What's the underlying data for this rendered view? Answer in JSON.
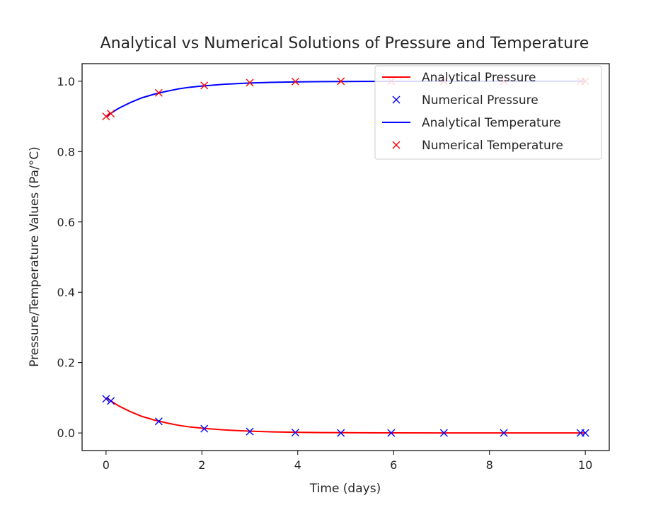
{
  "chart_data": {
    "type": "line",
    "title": "Analytical vs Numerical Solutions of Pressure and Temperature",
    "xlabel": "Time (days)",
    "ylabel": "Pressure/Temperature Values (Pa/°C)",
    "xlim": [
      -0.5,
      10.5
    ],
    "ylim": [
      -0.05,
      1.05
    ],
    "xticks": [
      0,
      2,
      4,
      6,
      8,
      10
    ],
    "xtick_labels": [
      "0",
      "2",
      "4",
      "6",
      "8",
      "10"
    ],
    "yticks": [
      0.0,
      0.2,
      0.4,
      0.6,
      0.8,
      1.0
    ],
    "ytick_labels": [
      "0.0",
      "0.2",
      "0.4",
      "0.6",
      "0.8",
      "1.0"
    ],
    "grid": false,
    "legend_position": "top-right",
    "series": [
      {
        "name": "Analytical Pressure",
        "kind": "line",
        "color": "#ff0000",
        "x": [
          0,
          0.25,
          0.5,
          0.75,
          1,
          1.25,
          1.5,
          1.75,
          2,
          2.5,
          3,
          3.5,
          4,
          4.5,
          5,
          6,
          7,
          8,
          9,
          10
        ],
        "y": [
          0.1,
          0.078,
          0.061,
          0.047,
          0.037,
          0.029,
          0.022,
          0.017,
          0.0135,
          0.0082,
          0.005,
          0.003,
          0.0018,
          0.0011,
          0.0007,
          0.0003,
          0.0001,
          0.0,
          0.0,
          0.0
        ]
      },
      {
        "name": "Numerical Pressure",
        "kind": "marker",
        "color": "#0000ff",
        "x": [
          0.0,
          0.1,
          1.1,
          2.05,
          3.0,
          3.95,
          4.9,
          5.95,
          7.05,
          8.3,
          9.9,
          10.0
        ],
        "y": [
          0.097,
          0.091,
          0.033,
          0.012,
          0.004,
          0.001,
          0.0,
          0.0,
          0.0,
          0.0,
          0.0,
          0.0
        ]
      },
      {
        "name": "Analytical Temperature",
        "kind": "line",
        "color": "#0000ff",
        "x": [
          0,
          0.25,
          0.5,
          0.75,
          1,
          1.25,
          1.5,
          1.75,
          2,
          2.5,
          3,
          3.5,
          4,
          4.5,
          5,
          6,
          7,
          8,
          9,
          10
        ],
        "y": [
          0.9,
          0.922,
          0.939,
          0.953,
          0.963,
          0.971,
          0.978,
          0.983,
          0.9865,
          0.9918,
          0.995,
          0.997,
          0.9982,
          0.9989,
          0.9993,
          0.9997,
          0.9999,
          1.0,
          1.0,
          1.0
        ]
      },
      {
        "name": "Numerical Temperature",
        "kind": "marker",
        "color": "#ff0000",
        "x": [
          0.0,
          0.1,
          1.1,
          2.05,
          3.0,
          3.95,
          4.9,
          5.95,
          7.05,
          8.3,
          9.9,
          10.0
        ],
        "y": [
          0.9,
          0.908,
          0.967,
          0.988,
          0.996,
          0.999,
          1.0,
          1.0,
          1.0,
          1.0,
          1.0,
          1.0
        ]
      }
    ]
  }
}
